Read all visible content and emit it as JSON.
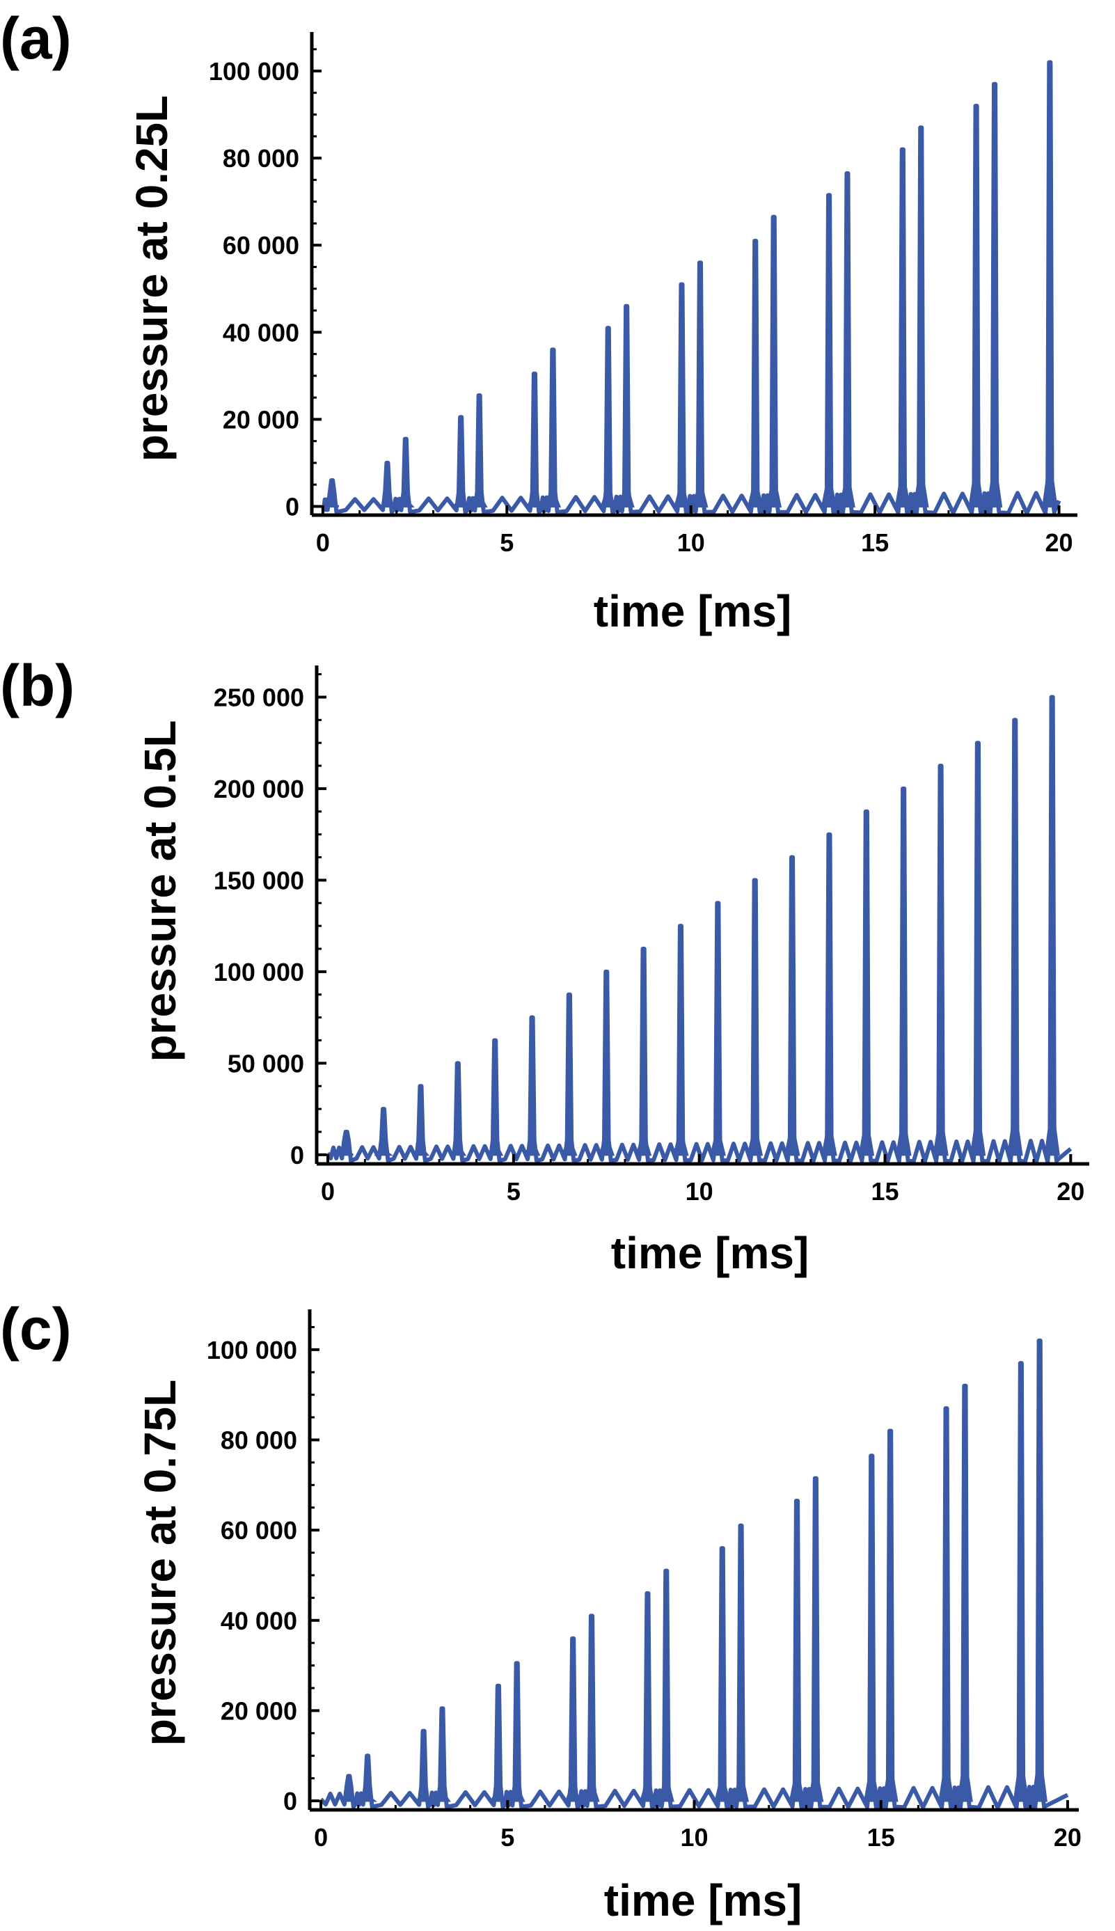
{
  "figure": {
    "panels": [
      {
        "label": "(a)",
        "ylabel": "pressure at 0.25L",
        "xlabel": "time [ms]"
      },
      {
        "label": "(b)",
        "ylabel": "pressure at 0.5L",
        "xlabel": "time [ms]"
      },
      {
        "label": "(c)",
        "ylabel": "pressure at 0.75L",
        "xlabel": "time [ms]"
      }
    ]
  },
  "chart_data": [
    {
      "type": "line",
      "panel": "(a)",
      "xlabel": "time [ms]",
      "ylabel": "pressure at 0.25L",
      "xlim": [
        -0.3,
        20.5
      ],
      "ylim": [
        -2000,
        108000
      ],
      "xticks": [
        0,
        5,
        10,
        15,
        20
      ],
      "xtick_labels": [
        "0",
        "5",
        "10",
        "15",
        "20"
      ],
      "yticks": [
        0,
        20000,
        40000,
        60000,
        80000,
        100000
      ],
      "ytick_labels": [
        "0",
        "20 000",
        "40 000",
        "60 000",
        "80 000",
        "100 000"
      ],
      "grid": false,
      "color": "#3a5aa8",
      "peaks": {
        "t": [
          0.25,
          1.75,
          2.25,
          3.75,
          4.25,
          5.75,
          6.25,
          7.75,
          8.25,
          9.75,
          10.25,
          11.75,
          12.25,
          13.75,
          14.25,
          15.75,
          16.25,
          17.75,
          18.25,
          19.75
        ],
        "p": [
          6000,
          10000,
          15500,
          20500,
          25500,
          30500,
          36000,
          41000,
          46000,
          51000,
          56000,
          61000,
          66500,
          71500,
          76500,
          82000,
          87000,
          92000,
          97000,
          102000
        ]
      }
    },
    {
      "type": "line",
      "panel": "(b)",
      "xlabel": "time [ms]",
      "ylabel": "pressure at 0.5L",
      "xlim": [
        -0.3,
        20.5
      ],
      "ylim": [
        -5000,
        265000
      ],
      "xticks": [
        0,
        5,
        10,
        15,
        20
      ],
      "xtick_labels": [
        "0",
        "5",
        "10",
        "15",
        "20"
      ],
      "yticks": [
        0,
        50000,
        100000,
        150000,
        200000,
        250000
      ],
      "ytick_labels": [
        "0",
        "50 000",
        "100 000",
        "150 000",
        "200 000",
        "250 000"
      ],
      "grid": false,
      "color": "#3a5aa8",
      "peaks": {
        "t": [
          0.5,
          1.5,
          2.5,
          3.5,
          4.5,
          5.5,
          6.5,
          7.5,
          8.5,
          9.5,
          10.5,
          11.5,
          12.5,
          13.5,
          14.5,
          15.5,
          16.5,
          17.5,
          18.5,
          19.5
        ],
        "p": [
          12500,
          25000,
          37500,
          50000,
          62500,
          75000,
          87500,
          100000,
          112500,
          125000,
          137500,
          150000,
          162500,
          175000,
          187500,
          200000,
          212500,
          225000,
          237500,
          250000
        ]
      }
    },
    {
      "type": "line",
      "panel": "(c)",
      "xlabel": "time [ms]",
      "ylabel": "pressure at 0.75L",
      "xlim": [
        -0.3,
        20.3
      ],
      "ylim": [
        -2000,
        108000
      ],
      "xticks": [
        0,
        5,
        10,
        15,
        20
      ],
      "xtick_labels": [
        "0",
        "5",
        "10",
        "15",
        "20"
      ],
      "yticks": [
        0,
        20000,
        40000,
        60000,
        80000,
        100000
      ],
      "ytick_labels": [
        "0",
        "20 000",
        "40 000",
        "60 000",
        "80 000",
        "100 000"
      ],
      "grid": false,
      "color": "#3a5aa8",
      "peaks": {
        "t": [
          0.75,
          1.25,
          2.75,
          3.25,
          4.75,
          5.25,
          6.75,
          7.25,
          8.75,
          9.25,
          10.75,
          11.25,
          12.75,
          13.25,
          14.75,
          15.25,
          16.75,
          17.25,
          18.75,
          19.25
        ],
        "p": [
          5500,
          10000,
          15500,
          20500,
          25500,
          30500,
          36000,
          41000,
          46000,
          51000,
          56000,
          61000,
          66500,
          71500,
          76500,
          82000,
          87000,
          92000,
          97000,
          102000
        ]
      }
    }
  ]
}
